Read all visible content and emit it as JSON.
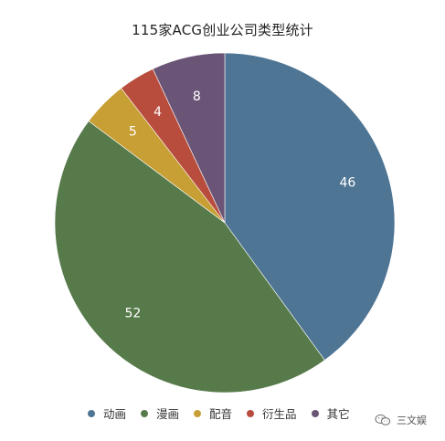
{
  "chart_data": {
    "type": "pie",
    "title": "115家ACG创业公司类型统计",
    "categories": [
      "动画",
      "漫画",
      "配音",
      "衍生品",
      "其它"
    ],
    "values": [
      46,
      52,
      5,
      4,
      8
    ],
    "colors": [
      "#4f7595",
      "#567a4a",
      "#c79f35",
      "#b84d3d",
      "#6b5577"
    ],
    "legend_position": "bottom",
    "start_angle_deg": 0,
    "direction": "clockwise"
  },
  "watermark": {
    "text": "三文娱",
    "icon": "wechat-icon"
  }
}
